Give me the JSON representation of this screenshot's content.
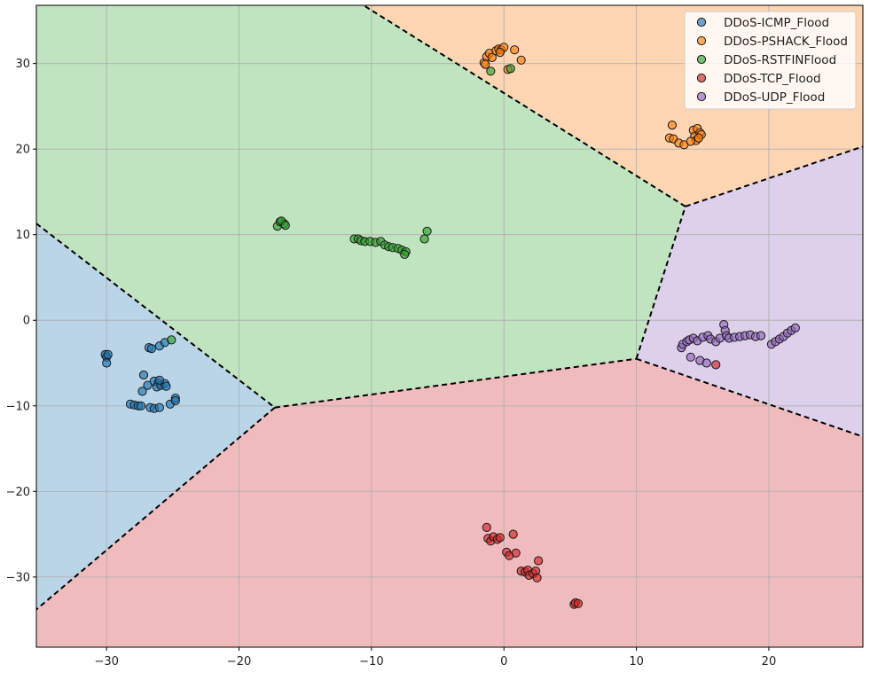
{
  "chart_data": {
    "type": "scatter",
    "title": "",
    "xlabel": "",
    "ylabel": "",
    "xlim": [
      -35.3,
      27.1
    ],
    "ylim": [
      -38.2,
      36.8
    ],
    "xticks": [
      -30,
      -20,
      -10,
      0,
      10,
      20
    ],
    "yticks": [
      -30,
      -20,
      -10,
      0,
      10,
      20,
      30
    ],
    "xtick_labels": [
      "−30",
      "−20",
      "−10",
      "0",
      "10",
      "20"
    ],
    "ytick_labels": [
      "−30",
      "−20",
      "−10",
      "0",
      "10",
      "20",
      "30"
    ],
    "grid": true,
    "legend_position": "top-right",
    "regions": [
      {
        "class": "DDoS-ICMP_Flood",
        "polygon": [
          [
            -35.3,
            11.3
          ],
          [
            -17.3,
            -10.2
          ],
          [
            -35.3,
            -33.8
          ]
        ]
      },
      {
        "class": "DDoS-PSHACK_Flood",
        "polygon": [
          [
            -10.6,
            36.8
          ],
          [
            27.1,
            36.8
          ],
          [
            27.1,
            20.3
          ],
          [
            13.7,
            13.3
          ]
        ]
      },
      {
        "class": "DDoS-RSTFINFlood",
        "polygon": [
          [
            -35.3,
            36.8
          ],
          [
            -10.6,
            36.8
          ],
          [
            13.7,
            13.3
          ],
          [
            10.0,
            -4.5
          ],
          [
            -17.3,
            -10.2
          ],
          [
            -35.3,
            11.3
          ]
        ]
      },
      {
        "class": "DDoS-TCP_Flood",
        "polygon": [
          [
            -17.3,
            -10.2
          ],
          [
            10.0,
            -4.5
          ],
          [
            27.1,
            -13.6
          ],
          [
            27.1,
            -38.2
          ],
          [
            -35.3,
            -38.2
          ],
          [
            -35.3,
            -33.8
          ]
        ]
      },
      {
        "class": "DDoS-UDP_Flood",
        "polygon": [
          [
            13.7,
            13.3
          ],
          [
            27.1,
            20.3
          ],
          [
            27.1,
            -13.6
          ],
          [
            10.0,
            -4.5
          ]
        ]
      }
    ],
    "boundaries": [
      [
        [
          -35.3,
          11.3
        ],
        [
          -17.3,
          -10.2
        ]
      ],
      [
        [
          -17.3,
          -10.2
        ],
        [
          -35.3,
          -33.8
        ]
      ],
      [
        [
          -17.3,
          -10.2
        ],
        [
          10.0,
          -4.5
        ]
      ],
      [
        [
          10.0,
          -4.5
        ],
        [
          13.7,
          13.3
        ]
      ],
      [
        [
          13.7,
          13.3
        ],
        [
          -10.6,
          36.8
        ]
      ],
      [
        [
          13.7,
          13.3
        ],
        [
          27.1,
          20.3
        ]
      ],
      [
        [
          10.0,
          -4.5
        ],
        [
          27.1,
          -13.6
        ]
      ]
    ],
    "series": [
      {
        "name": "DDoS-ICMP_Flood",
        "color": "#1f77b4",
        "region_color": "#bad4e8",
        "points": [
          [
            -30.1,
            -4.0
          ],
          [
            -30.0,
            -4.3
          ],
          [
            -29.9,
            -4.0
          ],
          [
            -30.0,
            -5.0
          ],
          [
            -26.8,
            -3.2
          ],
          [
            -26.6,
            -3.3
          ],
          [
            -26.0,
            -3.0
          ],
          [
            -25.6,
            -2.6
          ],
          [
            -27.2,
            -6.4
          ],
          [
            -27.3,
            -8.3
          ],
          [
            -26.9,
            -7.6
          ],
          [
            -26.4,
            -7.1
          ],
          [
            -26.1,
            -7.3
          ],
          [
            -26.2,
            -7.8
          ],
          [
            -25.9,
            -7.6
          ],
          [
            -25.6,
            -7.4
          ],
          [
            -25.5,
            -7.7
          ],
          [
            -26.0,
            -7.0
          ],
          [
            -28.2,
            -9.8
          ],
          [
            -27.9,
            -9.9
          ],
          [
            -27.6,
            -10.0
          ],
          [
            -27.4,
            -10.0
          ],
          [
            -26.7,
            -10.2
          ],
          [
            -26.4,
            -10.3
          ],
          [
            -26.0,
            -10.2
          ],
          [
            -25.2,
            -9.8
          ],
          [
            -24.8,
            -9.1
          ],
          [
            -24.8,
            -9.4
          ]
        ]
      },
      {
        "name": "DDoS-PSHACK_Flood",
        "color": "#ff7f0e",
        "region_color": "#fed5b3",
        "points": [
          [
            -1.5,
            30.1
          ],
          [
            -1.3,
            30.8
          ],
          [
            -1.1,
            31.2
          ],
          [
            -1.4,
            29.9
          ],
          [
            -0.9,
            30.7
          ],
          [
            -0.6,
            31.5
          ],
          [
            -0.4,
            31.7
          ],
          [
            -0.2,
            31.6
          ],
          [
            0.0,
            31.9
          ],
          [
            -0.3,
            31.3
          ],
          [
            0.8,
            31.6
          ],
          [
            1.3,
            30.4
          ],
          [
            0.3,
            29.3
          ],
          [
            12.5,
            21.3
          ],
          [
            12.8,
            21.2
          ],
          [
            12.7,
            22.8
          ],
          [
            13.2,
            20.7
          ],
          [
            13.6,
            20.5
          ],
          [
            14.3,
            22.2
          ],
          [
            14.4,
            21.5
          ],
          [
            14.6,
            22.4
          ],
          [
            14.8,
            21.9
          ],
          [
            14.5,
            21.0
          ],
          [
            14.1,
            20.9
          ],
          [
            14.9,
            21.7
          ],
          [
            14.7,
            21.3
          ]
        ]
      },
      {
        "name": "DDoS-RSTFINFlood",
        "color": "#2ca02c",
        "region_color": "#c0e3c0",
        "points": [
          [
            -25.1,
            -2.3
          ],
          [
            -17.1,
            11.0
          ],
          [
            -16.9,
            11.5
          ],
          [
            -16.6,
            11.3
          ],
          [
            -16.8,
            11.6
          ],
          [
            -16.5,
            11.1
          ],
          [
            -11.3,
            9.5
          ],
          [
            -11.0,
            9.5
          ],
          [
            -10.8,
            9.3
          ],
          [
            -10.5,
            9.2
          ],
          [
            -10.1,
            9.2
          ],
          [
            -9.7,
            9.1
          ],
          [
            -9.3,
            9.2
          ],
          [
            -9.0,
            8.8
          ],
          [
            -8.7,
            8.6
          ],
          [
            -8.4,
            8.5
          ],
          [
            -8.0,
            8.4
          ],
          [
            -7.7,
            8.2
          ],
          [
            -7.4,
            8.0
          ],
          [
            -7.5,
            7.7
          ],
          [
            -6.0,
            9.5
          ],
          [
            -5.8,
            10.4
          ],
          [
            -1.0,
            29.1
          ],
          [
            0.5,
            29.4
          ]
        ]
      },
      {
        "name": "DDoS-TCP_Flood",
        "color": "#d62728",
        "region_color": "#f0bbbc",
        "points": [
          [
            -1.3,
            -24.2
          ],
          [
            -1.2,
            -25.5
          ],
          [
            -1.0,
            -25.8
          ],
          [
            -0.8,
            -25.3
          ],
          [
            -0.5,
            -25.6
          ],
          [
            -0.3,
            -25.4
          ],
          [
            0.2,
            -27.1
          ],
          [
            0.4,
            -27.5
          ],
          [
            0.7,
            -25.0
          ],
          [
            0.9,
            -27.2
          ],
          [
            1.3,
            -29.3
          ],
          [
            1.6,
            -29.4
          ],
          [
            1.8,
            -29.2
          ],
          [
            1.9,
            -29.8
          ],
          [
            2.2,
            -29.6
          ],
          [
            2.4,
            -29.3
          ],
          [
            2.5,
            -30.1
          ],
          [
            2.6,
            -28.1
          ],
          [
            5.3,
            -33.2
          ],
          [
            5.4,
            -33.0
          ],
          [
            5.6,
            -33.1
          ],
          [
            16.0,
            -5.2
          ]
        ]
      },
      {
        "name": "DDoS-UDP_Flood",
        "color": "#9467bd",
        "region_color": "#ddd0ea",
        "points": [
          [
            13.4,
            -3.2
          ],
          [
            13.5,
            -2.8
          ],
          [
            13.8,
            -2.5
          ],
          [
            14.0,
            -2.3
          ],
          [
            14.3,
            -2.1
          ],
          [
            14.6,
            -2.4
          ],
          [
            15.0,
            -2.0
          ],
          [
            15.4,
            -1.8
          ],
          [
            15.6,
            -2.2
          ],
          [
            16.0,
            -2.5
          ],
          [
            16.3,
            -2.1
          ],
          [
            16.6,
            -0.5
          ],
          [
            16.7,
            -1.2
          ],
          [
            16.8,
            -1.8
          ],
          [
            17.0,
            -2.1
          ],
          [
            17.4,
            -2.0
          ],
          [
            17.8,
            -1.9
          ],
          [
            18.2,
            -1.8
          ],
          [
            18.6,
            -1.7
          ],
          [
            19.0,
            -1.9
          ],
          [
            19.4,
            -1.8
          ],
          [
            20.2,
            -2.8
          ],
          [
            20.5,
            -2.5
          ],
          [
            20.8,
            -2.2
          ],
          [
            21.1,
            -1.9
          ],
          [
            21.4,
            -1.5
          ],
          [
            21.7,
            -1.2
          ],
          [
            22.0,
            -0.9
          ],
          [
            14.1,
            -4.3
          ],
          [
            14.8,
            -4.7
          ],
          [
            15.3,
            -5.0
          ]
        ]
      }
    ]
  }
}
